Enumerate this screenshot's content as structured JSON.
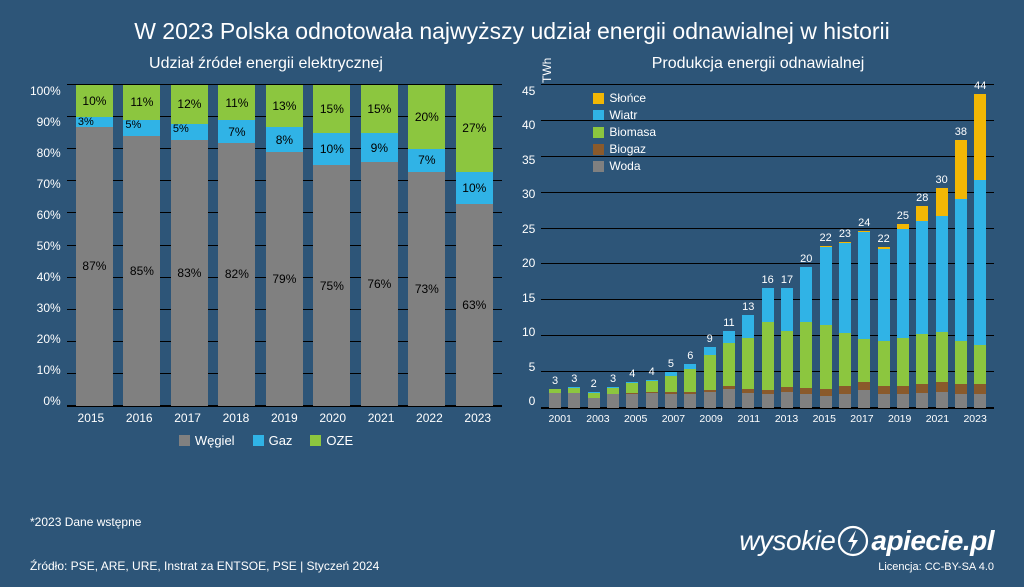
{
  "title": "W 2023 Polska odnotowała najwyższy udział energii odnawialnej w historii",
  "background_color": "#2d5578",
  "grid_color": "#000000",
  "text_color": "#ffffff",
  "left_chart": {
    "title": "Udział źródeł energii elektrycznej",
    "type": "stacked-bar-100",
    "ylim": [
      0,
      100
    ],
    "ytick_step": 10,
    "y_suffix": "%",
    "categories": [
      "2015",
      "2016",
      "2017",
      "2018",
      "2019",
      "2020",
      "2021",
      "2022",
      "2023"
    ],
    "series": [
      {
        "name": "Węgiel",
        "color": "#808080",
        "labels": [
          "87%",
          "85%",
          "83%",
          "82%",
          "79%",
          "75%",
          "76%",
          "73%",
          "63%"
        ],
        "values": [
          87,
          85,
          83,
          82,
          79,
          75,
          76,
          73,
          63
        ]
      },
      {
        "name": "Gaz",
        "color": "#30b3e6",
        "labels": [
          "3%",
          "5%",
          "5%",
          "7%",
          "8%",
          "10%",
          "9%",
          "7%",
          "10%"
        ],
        "values": [
          3,
          5,
          5,
          7,
          8,
          10,
          9,
          7,
          10
        ]
      },
      {
        "name": "OZE",
        "color": "#8cc63f",
        "labels": [
          "10%",
          "11%",
          "12%",
          "11%",
          "13%",
          "15%",
          "15%",
          "20%",
          "27%"
        ],
        "values": [
          10,
          11,
          12,
          11,
          13,
          15,
          15,
          20,
          27
        ]
      }
    ]
  },
  "right_chart": {
    "title": "Produkcja energii odnawialnej",
    "type": "stacked-bar",
    "y_title": "TWh",
    "ylim": [
      0,
      45
    ],
    "ytick_step": 5,
    "x_labels": [
      "2001",
      "2003",
      "2005",
      "2007",
      "2009",
      "2011",
      "2013",
      "2015",
      "2017",
      "2019",
      "2021",
      "2023"
    ],
    "totals": [
      "3",
      "3",
      "2",
      "3",
      "4",
      "4",
      "5",
      "6",
      "9",
      "11",
      "13",
      "16",
      "17",
      "20",
      "22",
      "23",
      "24",
      "22",
      "25",
      "28",
      "30",
      "38",
      "44"
    ],
    "legend": [
      {
        "name": "Słońce",
        "color": "#f2b705"
      },
      {
        "name": "Wiatr",
        "color": "#30b3e6"
      },
      {
        "name": "Biomasa",
        "color": "#8cc63f"
      },
      {
        "name": "Biogaz",
        "color": "#8a5a2b"
      },
      {
        "name": "Woda",
        "color": "#808080"
      }
    ],
    "stacks": [
      {
        "woda": 2.1,
        "biogaz": 0.0,
        "biomasa": 0.6,
        "wiatr": 0.0,
        "slonce": 0.0
      },
      {
        "woda": 2.1,
        "biogaz": 0.0,
        "biomasa": 0.7,
        "wiatr": 0.1,
        "slonce": 0.0
      },
      {
        "woda": 1.4,
        "biogaz": 0.0,
        "biomasa": 0.8,
        "wiatr": 0.1,
        "slonce": 0.0
      },
      {
        "woda": 1.9,
        "biogaz": 0.0,
        "biomasa": 0.9,
        "wiatr": 0.1,
        "slonce": 0.0
      },
      {
        "woda": 2.0,
        "biogaz": 0.1,
        "biomasa": 1.4,
        "wiatr": 0.1,
        "slonce": 0.0
      },
      {
        "woda": 2.1,
        "biogaz": 0.1,
        "biomasa": 1.6,
        "wiatr": 0.1,
        "slonce": 0.0
      },
      {
        "woda": 2.0,
        "biogaz": 0.2,
        "biomasa": 2.3,
        "wiatr": 0.5,
        "slonce": 0.0
      },
      {
        "woda": 2.0,
        "biogaz": 0.2,
        "biomasa": 3.2,
        "wiatr": 0.8,
        "slonce": 0.0
      },
      {
        "woda": 2.2,
        "biogaz": 0.3,
        "biomasa": 4.9,
        "wiatr": 1.1,
        "slonce": 0.0
      },
      {
        "woda": 2.6,
        "biogaz": 0.4,
        "biomasa": 6.0,
        "wiatr": 1.7,
        "slonce": 0.0
      },
      {
        "woda": 2.1,
        "biogaz": 0.5,
        "biomasa": 7.1,
        "wiatr": 3.2,
        "slonce": 0.0
      },
      {
        "woda": 1.9,
        "biogaz": 0.6,
        "biomasa": 9.5,
        "wiatr": 4.7,
        "slonce": 0.0
      },
      {
        "woda": 2.2,
        "biogaz": 0.7,
        "biomasa": 7.8,
        "wiatr": 6.0,
        "slonce": 0.0
      },
      {
        "woda": 2.0,
        "biogaz": 0.8,
        "biomasa": 9.2,
        "wiatr": 7.7,
        "slonce": 0.0
      },
      {
        "woda": 1.7,
        "biogaz": 0.9,
        "biomasa": 9.0,
        "wiatr": 10.9,
        "slonce": 0.1
      },
      {
        "woda": 2.0,
        "biogaz": 1.0,
        "biomasa": 7.4,
        "wiatr": 12.6,
        "slonce": 0.1
      },
      {
        "woda": 2.5,
        "biogaz": 1.1,
        "biomasa": 6.0,
        "wiatr": 14.9,
        "slonce": 0.2
      },
      {
        "woda": 1.9,
        "biogaz": 1.1,
        "biomasa": 6.3,
        "wiatr": 12.8,
        "slonce": 0.3
      },
      {
        "woda": 1.9,
        "biogaz": 1.1,
        "biomasa": 6.8,
        "wiatr": 15.1,
        "slonce": 0.7
      },
      {
        "woda": 2.1,
        "biogaz": 1.2,
        "biomasa": 7.0,
        "wiatr": 15.8,
        "slonce": 2.0
      },
      {
        "woda": 2.3,
        "biogaz": 1.3,
        "biomasa": 7.0,
        "wiatr": 16.2,
        "slonce": 3.9
      },
      {
        "woda": 2.0,
        "biogaz": 1.3,
        "biomasa": 6.0,
        "wiatr": 19.8,
        "slonce": 8.2
      },
      {
        "woda": 2.0,
        "biogaz": 1.3,
        "biomasa": 5.5,
        "wiatr": 23.0,
        "slonce": 12.0
      }
    ]
  },
  "footnote": "*2023 Dane wstępne",
  "source": "Źródło: PSE, ARE, URE,   Instrat za ENTSOE, PSE |  Styczeń 2024",
  "logo_text_1": "wysokie",
  "logo_text_2": "apiecie.pl",
  "license": "Licencja: CC-BY-SA 4.0"
}
